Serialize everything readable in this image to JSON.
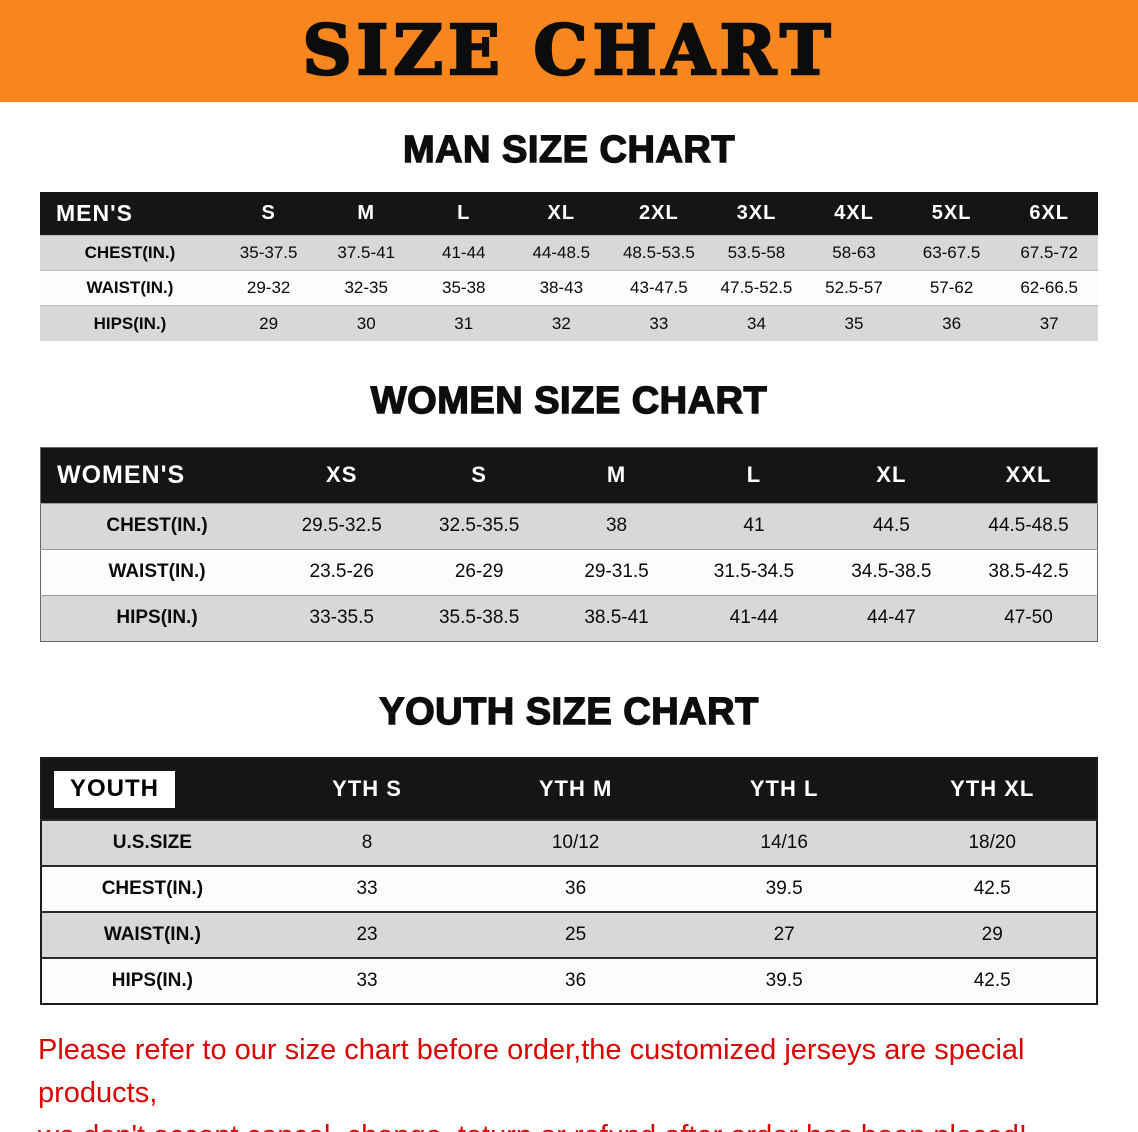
{
  "banner": {
    "title": "SIZE CHART"
  },
  "men": {
    "heading": "MAN SIZE CHART",
    "table": {
      "header": [
        "MEN'S",
        "S",
        "M",
        "L",
        "XL",
        "2XL",
        "3XL",
        "4XL",
        "5XL",
        "6XL"
      ],
      "rows": [
        [
          "CHEST(IN.)",
          "35-37.5",
          "37.5-41",
          "41-44",
          "44-48.5",
          "48.5-53.5",
          "53.5-58",
          "58-63",
          "63-67.5",
          "67.5-72"
        ],
        [
          "WAIST(IN.)",
          "29-32",
          "32-35",
          "35-38",
          "38-43",
          "43-47.5",
          "47.5-52.5",
          "52.5-57",
          "57-62",
          "62-66.5"
        ],
        [
          "HIPS(IN.)",
          "29",
          "30",
          "31",
          "32",
          "33",
          "34",
          "35",
          "36",
          "37"
        ]
      ]
    }
  },
  "women": {
    "heading": "WOMEN SIZE CHART",
    "table": {
      "header": [
        "WOMEN'S",
        "XS",
        "S",
        "M",
        "L",
        "XL",
        "XXL"
      ],
      "rows": [
        [
          "CHEST(IN.)",
          "29.5-32.5",
          "32.5-35.5",
          "38",
          "41",
          "44.5",
          "44.5-48.5"
        ],
        [
          "WAIST(IN.)",
          "23.5-26",
          "26-29",
          "29-31.5",
          "31.5-34.5",
          "34.5-38.5",
          "38.5-42.5"
        ],
        [
          "HIPS(IN.)",
          "33-35.5",
          "35.5-38.5",
          "38.5-41",
          "41-44",
          "44-47",
          "47-50"
        ]
      ]
    }
  },
  "youth": {
    "heading": "YOUTH SIZE CHART",
    "table": {
      "title_highlight": true,
      "header": [
        "YOUTH",
        "YTH S",
        "YTH M",
        "YTH L",
        "YTH XL"
      ],
      "rows": [
        [
          "U.S.SIZE",
          "8",
          "10/12",
          "14/16",
          "18/20"
        ],
        [
          "CHEST(IN.)",
          "33",
          "36",
          "39.5",
          "42.5"
        ],
        [
          "WAIST(IN.)",
          "23",
          "25",
          "27",
          "29"
        ],
        [
          "HIPS(IN.)",
          "33",
          "36",
          "39.5",
          "42.5"
        ]
      ]
    }
  },
  "disclaimer": {
    "line1": "Please refer to our size chart before order,the customized jerseys are special products,",
    "line2": "we don't accept cancel, change, teturn or refund after order has been placed!"
  },
  "colors": {
    "banner_bg": "#f6861d",
    "banner_text": "#0c0c0c",
    "heading_black": "#0d0d0d",
    "table_header_bg": "#151515",
    "table_header_text": "#ffffff",
    "row_shade": "#d8d8d8",
    "row_plain": "#fcfcfc",
    "disclaimer_red": "#dd0404"
  }
}
